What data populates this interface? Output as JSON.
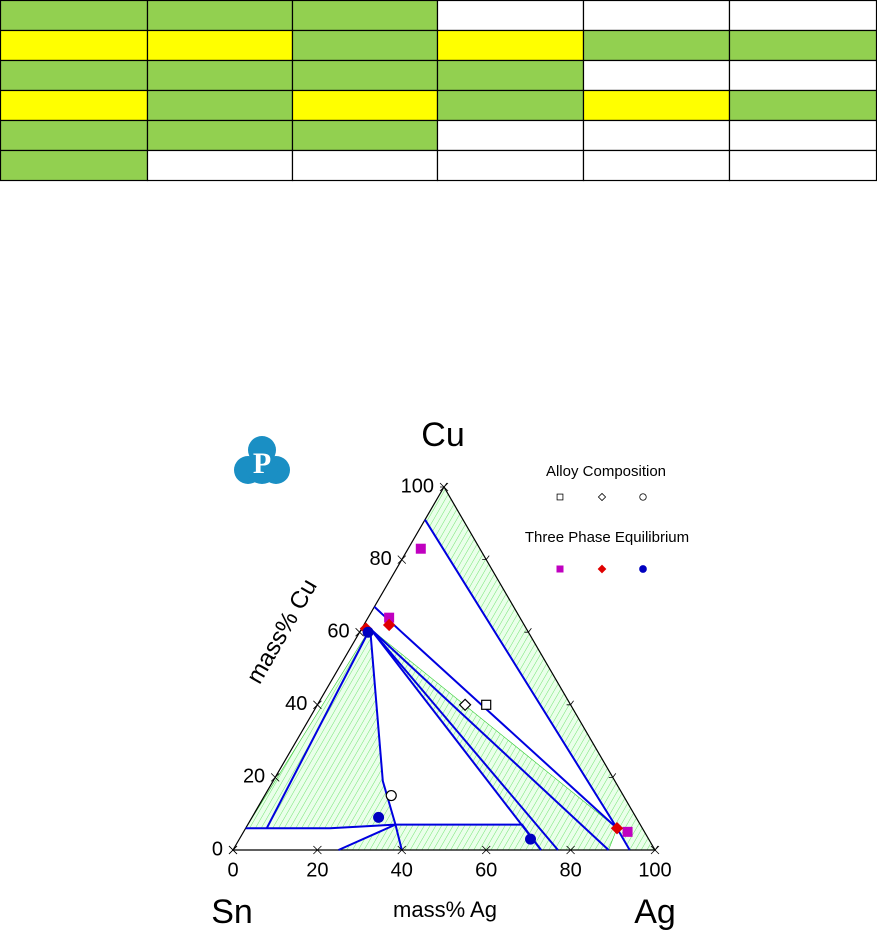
{
  "chart_data": {
    "type": "ternary",
    "logo": "P",
    "corners": {
      "top": "Cu",
      "left": "Sn",
      "right": "Ag"
    },
    "xlabel": "mass% Ag",
    "ylabel": "mass% Cu",
    "xlim": [
      0,
      100
    ],
    "xticks": [
      0,
      20,
      40,
      60,
      80,
      100
    ],
    "ylim": [
      0,
      100
    ],
    "yticks": [
      0,
      20,
      40,
      60,
      80,
      100
    ],
    "legend": {
      "alloy": "Alloy Composition",
      "equilibrium": "Three Phase Equilibrium"
    },
    "boundary_color": "#0000e0",
    "tie_line_color": "#33cc33",
    "series": [
      {
        "marker": "square",
        "color": "#c000c0",
        "alloy": {
          "x": 40,
          "y": 40
        },
        "tie": {
          "x": [
            3,
            5,
            91
          ],
          "y": [
            83,
            64,
            5
          ]
        }
      },
      {
        "marker": "diamond",
        "color": "#e00000",
        "alloy": {
          "x": 35,
          "y": 40
        },
        "tie": {
          "x": [
            1,
            6,
            88
          ],
          "y": [
            61,
            62,
            6
          ]
        }
      },
      {
        "marker": "circle",
        "color": "#0000c0",
        "alloy": {
          "x": 30,
          "y": 15
        },
        "tie": {
          "x": [
            2,
            30,
            69
          ],
          "y": [
            60,
            9,
            3
          ]
        }
      }
    ],
    "boundaries": [
      {
        "x": [
          0,
          88,
          94
        ],
        "y": [
          91,
          6,
          0
        ]
      },
      {
        "x": [
          0,
          10,
          88
        ],
        "y": [
          67,
          60,
          6
        ]
      },
      {
        "x": [
          2,
          89
        ],
        "y": [
          61,
          0
        ]
      },
      {
        "x": [
          2,
          77
        ],
        "y": [
          61,
          0
        ]
      },
      {
        "x": [
          2,
          73
        ],
        "y": [
          61,
          0
        ]
      },
      {
        "x": [
          2,
          5
        ],
        "y": [
          61,
          6
        ]
      },
      {
        "x": [
          2,
          26,
          35,
          40
        ],
        "y": [
          61,
          19,
          7,
          0
        ]
      },
      {
        "x": [
          0,
          20,
          35,
          65,
          73
        ],
        "y": [
          6,
          6,
          7,
          7,
          0
        ]
      },
      {
        "x": [
          25,
          35
        ],
        "y": [
          0,
          7
        ]
      }
    ],
    "tie_regions": [
      {
        "x": [
          0,
          0,
          100,
          94,
          88
        ],
        "y": [
          91,
          100,
          0,
          0,
          6
        ]
      },
      {
        "x": [
          2,
          5,
          20,
          35,
          26
        ],
        "y": [
          61,
          6,
          6,
          7,
          19
        ]
      },
      {
        "x": [
          2,
          0,
          5
        ],
        "y": [
          61,
          6,
          6
        ]
      },
      {
        "x": [
          2,
          88,
          89,
          73
        ],
        "y": [
          61,
          6,
          0,
          0
        ]
      },
      {
        "x": [
          35,
          65,
          73,
          25
        ],
        "y": [
          7,
          7,
          0,
          0
        ]
      }
    ]
  }
}
